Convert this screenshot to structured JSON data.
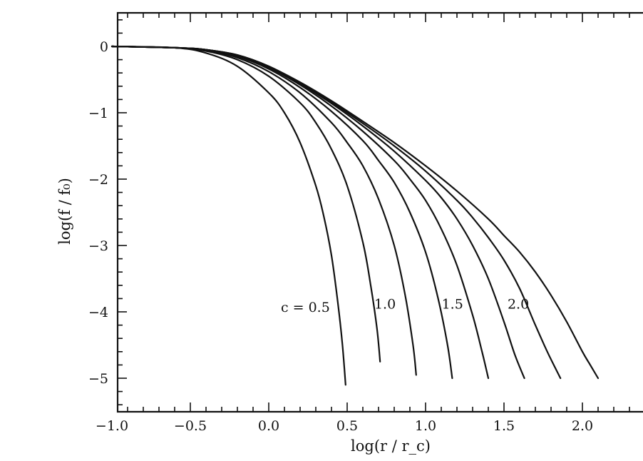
{
  "chart_data": {
    "type": "line",
    "xlabel": "log(r / r_c)",
    "ylabel": "log(f / f₀)",
    "xlim": [
      -1.0,
      2.5
    ],
    "ylim": [
      -5.45,
      0.55
    ],
    "grid": false,
    "xticks": [
      {
        "value": -1.0,
        "label": "−1.0"
      },
      {
        "value": -0.5,
        "label": "−0.5"
      },
      {
        "value": 0.0,
        "label": "0.0"
      },
      {
        "value": 0.5,
        "label": "0.5"
      },
      {
        "value": 1.0,
        "label": "1.0"
      },
      {
        "value": 1.5,
        "label": "1.5"
      },
      {
        "value": 2.0,
        "label": "2.0"
      }
    ],
    "yticks": [
      {
        "value": 0,
        "label": "0"
      },
      {
        "value": -1,
        "label": "−1"
      },
      {
        "value": -2,
        "label": "−2"
      },
      {
        "value": -3,
        "label": "−3"
      },
      {
        "value": -4,
        "label": "−4"
      },
      {
        "value": -5,
        "label": "−5"
      }
    ],
    "curve_labels": [
      {
        "text": "c = 0.5",
        "x": 0.39,
        "y": -4.0
      },
      {
        "text": "1.0",
        "x": 0.81,
        "y": -3.95
      },
      {
        "text": "1.5",
        "x": 1.24,
        "y": -3.95
      },
      {
        "text": "2.0",
        "x": 1.66,
        "y": -3.95
      }
    ],
    "series": [
      {
        "x": [
          -1.0,
          -0.6,
          -0.4,
          -0.2,
          0.0,
          0.1,
          0.2,
          0.3,
          0.35,
          0.4,
          0.44,
          0.47,
          0.49
        ],
        "y": [
          0.0,
          -0.02,
          -0.1,
          -0.3,
          -0.7,
          -1.0,
          -1.45,
          -2.1,
          -2.55,
          -3.15,
          -3.85,
          -4.5,
          -5.1
        ]
      },
      {
        "x": [
          -1.0,
          -0.6,
          -0.4,
          -0.2,
          0.0,
          0.2,
          0.3,
          0.4,
          0.5,
          0.6,
          0.65,
          0.69,
          0.71
        ],
        "y": [
          0.0,
          -0.02,
          -0.07,
          -0.2,
          -0.45,
          -0.85,
          -1.15,
          -1.55,
          -2.1,
          -2.95,
          -3.6,
          -4.25,
          -4.75
        ]
      },
      {
        "x": [
          -1.0,
          -0.6,
          -0.4,
          -0.2,
          0.0,
          0.2,
          0.4,
          0.5,
          0.6,
          0.7,
          0.8,
          0.87,
          0.92,
          0.94
        ],
        "y": [
          0.0,
          -0.02,
          -0.06,
          -0.17,
          -0.38,
          -0.7,
          -1.15,
          -1.45,
          -1.8,
          -2.3,
          -3.0,
          -3.75,
          -4.5,
          -4.95
        ]
      },
      {
        "x": [
          -1.0,
          -0.6,
          -0.4,
          -0.2,
          0.0,
          0.2,
          0.4,
          0.6,
          0.7,
          0.8,
          0.9,
          1.0,
          1.08,
          1.14,
          1.17
        ],
        "y": [
          0.0,
          -0.02,
          -0.05,
          -0.15,
          -0.34,
          -0.62,
          -0.98,
          -1.42,
          -1.72,
          -2.05,
          -2.5,
          -3.1,
          -3.8,
          -4.5,
          -5.0
        ]
      },
      {
        "x": [
          -1.0,
          -0.6,
          -0.4,
          -0.2,
          0.0,
          0.2,
          0.4,
          0.6,
          0.8,
          0.9,
          1.0,
          1.1,
          1.2,
          1.3,
          1.36,
          1.4
        ],
        "y": [
          0.0,
          -0.02,
          -0.05,
          -0.14,
          -0.32,
          -0.58,
          -0.9,
          -1.28,
          -1.72,
          -2.0,
          -2.32,
          -2.75,
          -3.3,
          -4.05,
          -4.6,
          -5.0
        ]
      },
      {
        "x": [
          -1.0,
          -0.6,
          -0.4,
          -0.2,
          0.0,
          0.2,
          0.4,
          0.6,
          0.8,
          1.0,
          1.1,
          1.2,
          1.3,
          1.4,
          1.5,
          1.57,
          1.63
        ],
        "y": [
          0.0,
          -0.02,
          -0.05,
          -0.14,
          -0.31,
          -0.56,
          -0.86,
          -1.2,
          -1.58,
          -2.02,
          -2.28,
          -2.6,
          -3.0,
          -3.5,
          -4.15,
          -4.65,
          -5.0
        ]
      },
      {
        "x": [
          -1.0,
          -0.6,
          -0.4,
          -0.2,
          0.0,
          0.2,
          0.4,
          0.6,
          0.8,
          1.0,
          1.2,
          1.3,
          1.4,
          1.5,
          1.6,
          1.7,
          1.78,
          1.86
        ],
        "y": [
          0.0,
          -0.02,
          -0.05,
          -0.13,
          -0.3,
          -0.55,
          -0.84,
          -1.16,
          -1.5,
          -1.88,
          -2.32,
          -2.58,
          -2.88,
          -3.22,
          -3.65,
          -4.2,
          -4.62,
          -5.0
        ]
      },
      {
        "x": [
          -1.0,
          -0.6,
          -0.4,
          -0.2,
          0.0,
          0.2,
          0.4,
          0.6,
          0.8,
          1.0,
          1.2,
          1.4,
          1.5,
          1.6,
          1.7,
          1.8,
          1.9,
          2.0,
          2.05,
          2.1
        ],
        "y": [
          0.0,
          -0.02,
          -0.05,
          -0.13,
          -0.3,
          -0.54,
          -0.82,
          -1.13,
          -1.45,
          -1.8,
          -2.18,
          -2.6,
          -2.85,
          -3.1,
          -3.4,
          -3.75,
          -4.15,
          -4.6,
          -4.8,
          -5.0
        ]
      }
    ]
  }
}
